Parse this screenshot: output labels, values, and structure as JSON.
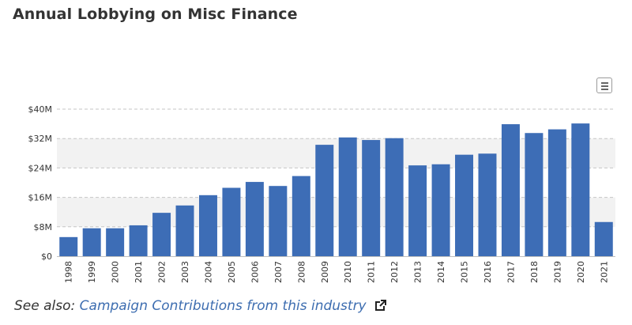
{
  "page": {
    "title": "Annual Lobbying on Misc Finance",
    "see_also_prefix": "See also:",
    "see_also_link": "Campaign Contributions from this industry",
    "menu_icon": "hamburger-menu-icon",
    "link_icon": "external-link-icon"
  },
  "chart_data": {
    "type": "bar",
    "title": "Annual Lobbying on Misc Finance",
    "xlabel": "",
    "ylabel": "",
    "categories": [
      "1998",
      "1999",
      "2000",
      "2001",
      "2002",
      "2003",
      "2004",
      "2005",
      "2006",
      "2007",
      "2008",
      "2009",
      "2010",
      "2011",
      "2012",
      "2013",
      "2014",
      "2015",
      "2016",
      "2017",
      "2018",
      "2019",
      "2020",
      "2021"
    ],
    "values": [
      5.2,
      7.6,
      7.6,
      8.4,
      11.8,
      13.8,
      16.6,
      18.6,
      20.2,
      19.1,
      21.8,
      30.3,
      32.3,
      31.6,
      32.1,
      24.7,
      25.0,
      27.6,
      27.9,
      35.9,
      33.5,
      34.5,
      36.1,
      9.3
    ],
    "ylim": [
      0,
      40
    ],
    "yticks": [
      0,
      8,
      16,
      24,
      32,
      40
    ],
    "ytick_labels": [
      "$0",
      "$8M",
      "$16M",
      "$24M",
      "$32M",
      "$40M"
    ],
    "grid": true,
    "colors": {
      "bar": "#3d6db6",
      "band": "#f2f2f2",
      "grid": "#c6c6c6",
      "axis": "#333333"
    }
  }
}
